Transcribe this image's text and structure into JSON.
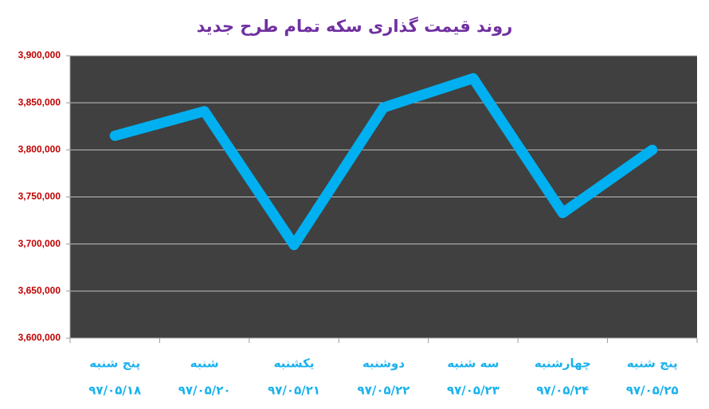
{
  "chart_data": {
    "type": "line",
    "title": "روند قیمت گذاری سکه تمام طرح جدید",
    "categories": [
      [
        "پنج شنبه",
        "۹۷/۰۵/۱۸"
      ],
      [
        "شنبه",
        "۹۷/۰۵/۲۰"
      ],
      [
        "یکشنبه",
        "۹۷/۰۵/۲۱"
      ],
      [
        "دوشنبه",
        "۹۷/۰۵/۲۲"
      ],
      [
        "سه شنبه",
        "۹۷/۰۵/۲۳"
      ],
      [
        "چهارشنبه",
        "۹۷/۰۵/۲۴"
      ],
      [
        "پنج شنبه",
        "۹۷/۰۵/۲۵"
      ]
    ],
    "values": [
      3815000,
      3841000,
      3699000,
      3845000,
      3876000,
      3733000,
      3800000
    ],
    "color": "#00b0f0",
    "ylim": [
      3600000,
      3900000
    ],
    "yticks": [
      {
        "value": 3600000,
        "label": "3,600,000"
      },
      {
        "value": 3650000,
        "label": "3,650,000"
      },
      {
        "value": 3700000,
        "label": "3,700,000"
      },
      {
        "value": 3750000,
        "label": "3,750,000"
      },
      {
        "value": 3800000,
        "label": "3,800,000"
      },
      {
        "value": 3850000,
        "label": "3,850,000"
      },
      {
        "value": 3900000,
        "label": "3,900,000"
      }
    ],
    "grid": true
  }
}
